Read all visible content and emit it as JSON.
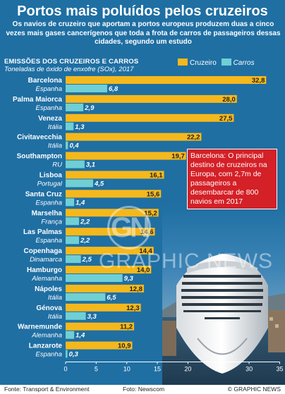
{
  "header": {
    "title": "Portos mais poluídos pelos cruzeiros",
    "subtitle": "Os navios de cruzeiro que aportam a portos europeus produzem duas a cinco vezes mais gases cancerígenos que toda a frota de carros de passageiros dessas cidades, segundo um estudo"
  },
  "chart_heading": "EMISSÕES DOS CRUZEIROS E CARROS",
  "chart_subheading": "Toneladas de óxido de enxofre (SOx), 2017",
  "legend": {
    "cruise": "Cruzeiro",
    "cars": "Carros"
  },
  "colors": {
    "cruise": "#f5b81c",
    "cars": "#6fcfd4",
    "background": "#1f6fa3",
    "callout": "#d42027"
  },
  "callout": "Barcelona: O principal destino de cruzeiros na Europa, com 2,7m de passageiros a desembarcar de 800 navios em 2017",
  "watermark": {
    "logo": "GN",
    "text": "GRAPHIC NEWS"
  },
  "footer": {
    "source": "Fonte: Transport & Environment",
    "photo": "Foto: Newscom",
    "copyright": "© GRAPHIC NEWS"
  },
  "chart_data": {
    "type": "bar",
    "orientation": "horizontal",
    "xlim": [
      0,
      35
    ],
    "xticks": [
      0,
      5,
      10,
      15,
      20,
      25,
      30,
      35
    ],
    "grid": false,
    "legend_position": "top-right",
    "rows": [
      {
        "city": "Barcelona",
        "country": "Espanha",
        "cruise": 32.8,
        "cars": 6.8,
        "cruise_label": "32,8",
        "cars_label": "6,8"
      },
      {
        "city": "Palma Maiorca",
        "country": "Espanha",
        "cruise": 28.0,
        "cars": 2.9,
        "cruise_label": "28,0",
        "cars_label": "2,9"
      },
      {
        "city": "Veneza",
        "country": "Itália",
        "cruise": 27.5,
        "cars": 1.3,
        "cruise_label": "27,5",
        "cars_label": "1,3"
      },
      {
        "city": "Civitavecchia",
        "country": "Itália",
        "cruise": 22.2,
        "cars": 0.4,
        "cruise_label": "22,2",
        "cars_label": "0,4"
      },
      {
        "city": "Southampton",
        "country": "RU",
        "cruise": 19.7,
        "cars": 3.1,
        "cruise_label": "19,7",
        "cars_label": "3,1"
      },
      {
        "city": "Lisboa",
        "country": "Portugal",
        "cruise": 16.1,
        "cars": 4.5,
        "cruise_label": "16,1",
        "cars_label": "4,5"
      },
      {
        "city": "Santa Cruz",
        "country": "Espanha",
        "cruise": 15.6,
        "cars": 1.4,
        "cruise_label": "15,6",
        "cars_label": "1,4"
      },
      {
        "city": "Marselha",
        "country": "França",
        "cruise": 15.2,
        "cars": 2.2,
        "cruise_label": "15,2",
        "cars_label": "2,2"
      },
      {
        "city": "Las Palmas",
        "country": "Espanha",
        "cruise": 14.6,
        "cars": 2.2,
        "cruise_label": "14,6",
        "cars_label": "2,2"
      },
      {
        "city": "Copenhaga",
        "country": "Dinamarca",
        "cruise": 14.4,
        "cars": 2.5,
        "cruise_label": "14,4",
        "cars_label": "2,5"
      },
      {
        "city": "Hamburgo",
        "country": "Alemanha",
        "cruise": 14.0,
        "cars": 9.3,
        "cruise_label": "14,0",
        "cars_label": "9,3"
      },
      {
        "city": "Nápoles",
        "country": "Itália",
        "cruise": 12.8,
        "cars": 6.5,
        "cruise_label": "12,8",
        "cars_label": "6,5"
      },
      {
        "city": "Génova",
        "country": "Itália",
        "cruise": 12.3,
        "cars": 3.3,
        "cruise_label": "12,3",
        "cars_label": "3,3"
      },
      {
        "city": "Warnemunde",
        "country": "Alemanha",
        "cruise": 11.2,
        "cars": 1.4,
        "cruise_label": "11,2",
        "cars_label": "1,4"
      },
      {
        "city": "Lanzarote",
        "country": "Espanha",
        "cruise": 10.9,
        "cars": 0.3,
        "cruise_label": "10,9",
        "cars_label": "0,3"
      }
    ]
  }
}
